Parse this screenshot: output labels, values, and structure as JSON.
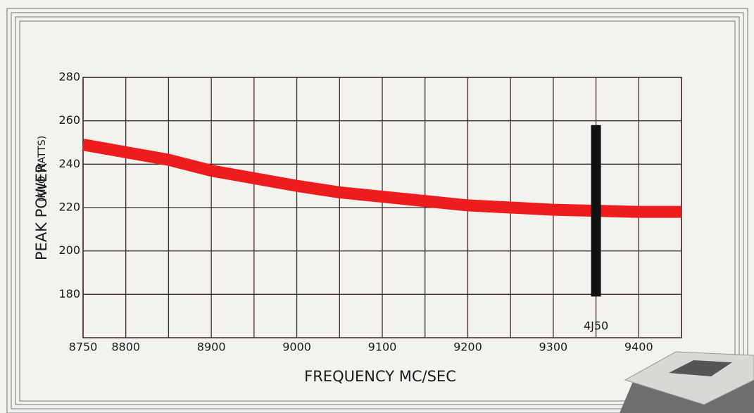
{
  "chart_data": {
    "type": "line",
    "y_label": "PEAK POWER",
    "y_label_unit": "(KILO WATTS)",
    "x_label": "FREQUENCY MC/SEC",
    "x": [
      8750,
      8800,
      8850,
      8900,
      8950,
      9000,
      9050,
      9100,
      9150,
      9200,
      9250,
      9300,
      9350,
      9400,
      9450
    ],
    "series": [
      {
        "color": "#ee1c1c",
        "values": [
          249,
          245.5,
          242,
          237,
          233.5,
          230,
          227,
          225,
          223,
          221,
          220,
          219,
          218.5,
          218,
          218
        ]
      }
    ],
    "xlim": [
      8750,
      9450
    ],
    "ylim": [
      160,
      280
    ],
    "xticks": [
      8750,
      8800,
      8900,
      9000,
      9100,
      9200,
      9300,
      9400
    ],
    "xminorticks": [
      8850,
      8950,
      9050,
      9150,
      9250,
      9350,
      9450
    ],
    "yticks": [
      180,
      200,
      220,
      240,
      260,
      280
    ],
    "grid": true,
    "marker": {
      "label": "4J50",
      "x": 9350,
      "range": [
        179,
        258
      ],
      "color": "#111111"
    }
  }
}
